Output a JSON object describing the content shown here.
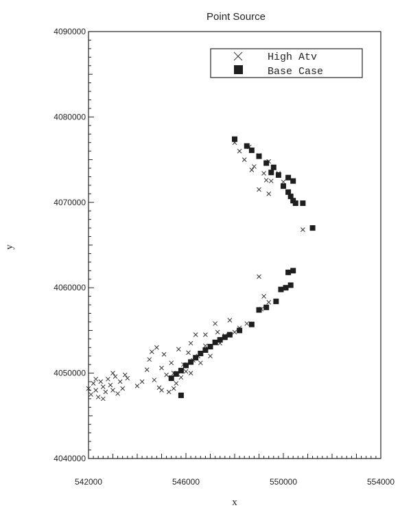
{
  "chart_data": {
    "type": "scatter",
    "title": "Point Source",
    "xlabel": "x",
    "ylabel": "y",
    "xlim": [
      542000,
      554000
    ],
    "ylim": [
      4040000,
      4090000
    ],
    "x_ticks": [
      542000,
      546000,
      550000,
      554000
    ],
    "y_ticks": [
      4040000,
      4050000,
      4060000,
      4070000,
      4080000,
      4090000
    ],
    "x_tick_labels": [
      "542000",
      "546000",
      "550000",
      "554000"
    ],
    "y_tick_labels": [
      "4040000",
      "4050000",
      "4060000",
      "4070000",
      "4080000",
      "4090000"
    ],
    "grid": false,
    "legend_position": "top-right",
    "series": [
      {
        "name": "High Atv",
        "marker": "x",
        "color": "#333333",
        "points": [
          [
            542000,
            4048200
          ],
          [
            542100,
            4047500
          ],
          [
            542200,
            4048800
          ],
          [
            542300,
            4048000
          ],
          [
            542400,
            4047200
          ],
          [
            542500,
            4049000
          ],
          [
            542600,
            4048400
          ],
          [
            542700,
            4047800
          ],
          [
            542800,
            4049300
          ],
          [
            542900,
            4048600
          ],
          [
            543000,
            4048000
          ],
          [
            543100,
            4049600
          ],
          [
            543200,
            4047600
          ],
          [
            543300,
            4049000
          ],
          [
            543400,
            4048200
          ],
          [
            543500,
            4049800
          ],
          [
            543600,
            4049400
          ],
          [
            542300,
            4049300
          ],
          [
            542600,
            4047000
          ],
          [
            543000,
            4050000
          ],
          [
            544000,
            4048500
          ],
          [
            544200,
            4049000
          ],
          [
            544400,
            4050400
          ],
          [
            544500,
            4051600
          ],
          [
            544600,
            4052500
          ],
          [
            544700,
            4049200
          ],
          [
            544800,
            4053000
          ],
          [
            544900,
            4048300
          ],
          [
            545000,
            4050600
          ],
          [
            545100,
            4052200
          ],
          [
            545200,
            4049800
          ],
          [
            545300,
            4047800
          ],
          [
            545400,
            4051200
          ],
          [
            545500,
            4050000
          ],
          [
            545600,
            4048800
          ],
          [
            545700,
            4052800
          ],
          [
            545800,
            4049500
          ],
          [
            545900,
            4051000
          ],
          [
            546000,
            4050200
          ],
          [
            546100,
            4052400
          ],
          [
            546200,
            4053500
          ],
          [
            546300,
            4051500
          ],
          [
            546400,
            4054500
          ],
          [
            546500,
            4052000
          ],
          [
            546600,
            4051200
          ],
          [
            546800,
            4053200
          ],
          [
            547000,
            4052000
          ],
          [
            547200,
            4055800
          ],
          [
            547400,
            4053500
          ],
          [
            547600,
            4054400
          ],
          [
            547800,
            4056200
          ],
          [
            548000,
            4054800
          ],
          [
            548200,
            4055300
          ],
          [
            548500,
            4055800
          ],
          [
            545500,
            4048200
          ],
          [
            545000,
            4048000
          ],
          [
            546800,
            4054500
          ],
          [
            547300,
            4054800
          ],
          [
            546200,
            4050000
          ],
          [
            545800,
            4050200
          ],
          [
            549000,
            4061300
          ],
          [
            549200,
            4059000
          ],
          [
            549400,
            4058300
          ],
          [
            549100,
            4057500
          ],
          [
            550000,
            4072400
          ],
          [
            550800,
            4066800
          ],
          [
            548000,
            4077000
          ],
          [
            548200,
            4076000
          ],
          [
            548400,
            4075000
          ],
          [
            548600,
            4076500
          ],
          [
            548800,
            4074200
          ],
          [
            549000,
            4075500
          ],
          [
            549200,
            4073400
          ],
          [
            549400,
            4074800
          ],
          [
            549000,
            4071500
          ],
          [
            549500,
            4072500
          ],
          [
            549800,
            4073400
          ],
          [
            549400,
            4071000
          ],
          [
            548700,
            4073800
          ],
          [
            549300,
            4072600
          ]
        ]
      },
      {
        "name": "Base Case",
        "marker": "square",
        "color": "#1e1e1e",
        "points": [
          [
            545800,
            4047400
          ],
          [
            545400,
            4049400
          ],
          [
            545600,
            4049900
          ],
          [
            545800,
            4050300
          ],
          [
            546000,
            4050900
          ],
          [
            546200,
            4051300
          ],
          [
            546400,
            4051800
          ],
          [
            546600,
            4052300
          ],
          [
            546800,
            4052700
          ],
          [
            547000,
            4053100
          ],
          [
            547200,
            4053600
          ],
          [
            547400,
            4053900
          ],
          [
            547600,
            4054200
          ],
          [
            547800,
            4054500
          ],
          [
            548200,
            4055000
          ],
          [
            548700,
            4055700
          ],
          [
            549000,
            4057400
          ],
          [
            549300,
            4057700
          ],
          [
            549700,
            4058400
          ],
          [
            549900,
            4059800
          ],
          [
            550100,
            4060000
          ],
          [
            550300,
            4060300
          ],
          [
            550200,
            4061800
          ],
          [
            550400,
            4062000
          ],
          [
            551200,
            4067000
          ],
          [
            548000,
            4077400
          ],
          [
            548500,
            4076600
          ],
          [
            548700,
            4076100
          ],
          [
            549000,
            4075400
          ],
          [
            549300,
            4074600
          ],
          [
            549600,
            4074100
          ],
          [
            549500,
            4073500
          ],
          [
            549800,
            4073200
          ],
          [
            550000,
            4071900
          ],
          [
            550200,
            4071200
          ],
          [
            550300,
            4070700
          ],
          [
            550400,
            4070200
          ],
          [
            550500,
            4069900
          ],
          [
            550800,
            4069900
          ],
          [
            550200,
            4072900
          ],
          [
            550400,
            4072500
          ]
        ]
      }
    ]
  }
}
